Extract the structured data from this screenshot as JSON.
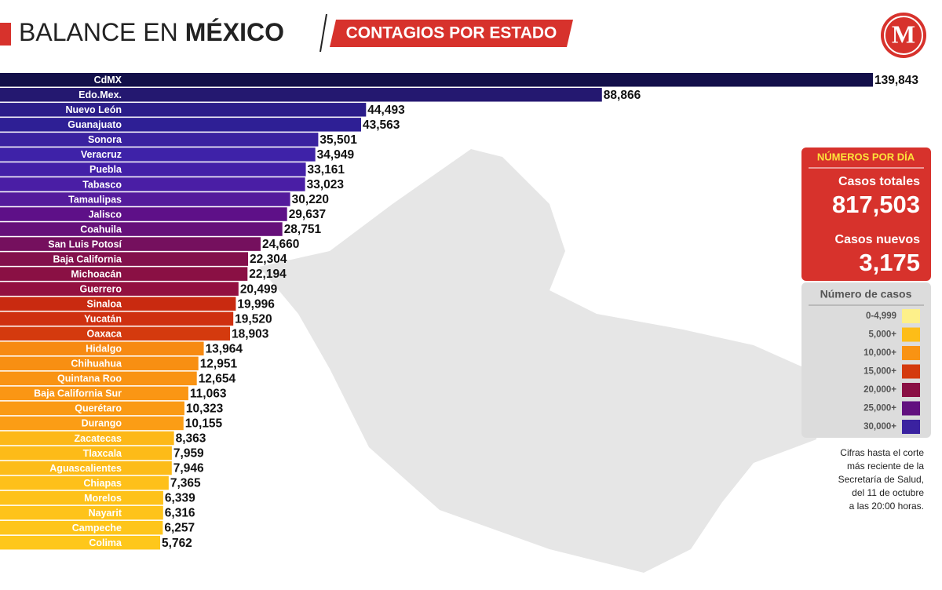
{
  "header": {
    "title_regular": "BALANCE EN",
    "title_bold": "MÉXICO",
    "subtitle": "CONTAGIOS POR ESTADO",
    "logo": "M"
  },
  "chart_data": {
    "type": "bar",
    "orientation": "horizontal",
    "categories": [
      "CdMX",
      "Edo.Mex.",
      "Nuevo León",
      "Guanajuato",
      "Sonora",
      "Veracruz",
      "Puebla",
      "Tabasco",
      "Tamaulipas",
      "Jalisco",
      "Coahuila",
      "San Luis Potosí",
      "Baja California",
      "Michoacán",
      "Guerrero",
      "Sinaloa",
      "Yucatán",
      "Oaxaca",
      "Hidalgo",
      "Chihuahua",
      "Quintana Roo",
      "Baja California Sur",
      "Querétaro",
      "Durango",
      "Zacatecas",
      "Tlaxcala",
      "Aguascalientes",
      "Chiapas",
      "Morelos",
      "Nayarit",
      "Campeche",
      "Colima"
    ],
    "values": [
      139843,
      88866,
      44493,
      43563,
      35501,
      34949,
      33161,
      33023,
      30220,
      29637,
      28751,
      24660,
      22304,
      22194,
      20499,
      19996,
      19520,
      18903,
      13964,
      12951,
      12654,
      11063,
      10323,
      10155,
      8363,
      7959,
      7946,
      7365,
      6339,
      6316,
      6257,
      5762
    ],
    "value_labels": [
      "139,843",
      "88,866",
      "44,493",
      "43,563",
      "35,501",
      "34,949",
      "33,161",
      "33,023",
      "30,220",
      "29,637",
      "28,751",
      "24,660",
      "22,304",
      "22,194",
      "20,499",
      "19,996",
      "19,520",
      "18,903",
      "13,964",
      "12,951",
      "12,654",
      "11,063",
      "10,323",
      "10,155",
      "8,363",
      "7,959",
      "7,946",
      "7,365",
      "6,339",
      "6,316",
      "6,257",
      "5,762"
    ],
    "colors": [
      "#13104a",
      "#241870",
      "#2b1d8a",
      "#2e1f95",
      "#3a22a0",
      "#3e22a8",
      "#4320a8",
      "#4a1ea5",
      "#541b9c",
      "#5e1088",
      "#66107a",
      "#75105e",
      "#83104c",
      "#8a1044",
      "#931040",
      "#c92a10",
      "#cf3010",
      "#d43a0e",
      "#f78a12",
      "#f88f12",
      "#f99313",
      "#fa9614",
      "#fa9a14",
      "#fb9d15",
      "#fdb818",
      "#fdbb18",
      "#fdbc19",
      "#fec01a",
      "#fec21a",
      "#fec31a",
      "#fec51b",
      "#fec71b"
    ]
  },
  "panel": {
    "title": "NÚMEROS POR DÍA",
    "total_label": "Casos totales",
    "total_value": "817,503",
    "new_label": "Casos nuevos",
    "new_value": "3,175"
  },
  "legend": {
    "title": "Número de casos",
    "items": [
      {
        "label": "0-4,999",
        "color": "#fdf08a"
      },
      {
        "label": "5,000+",
        "color": "#fdbd18"
      },
      {
        "label": "10,000+",
        "color": "#f99313"
      },
      {
        "label": "15,000+",
        "color": "#d43a0e"
      },
      {
        "label": "20,000+",
        "color": "#8a1044"
      },
      {
        "label": "25,000+",
        "color": "#62107f"
      },
      {
        "label": "30,000+",
        "color": "#3a22a0"
      }
    ]
  },
  "note": [
    "Cifras hasta el corte",
    "más reciente de la",
    "Secretaría de Salud,",
    "del 11 de octubre",
    "a las 20:00 horas."
  ]
}
